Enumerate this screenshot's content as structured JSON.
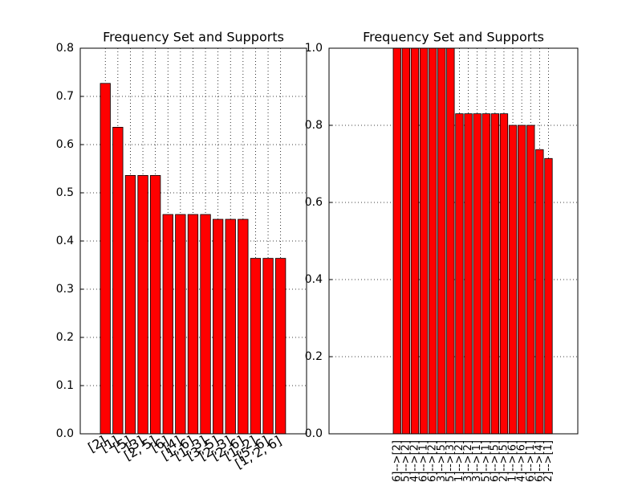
{
  "chart_data": [
    {
      "type": "bar",
      "title": "Frequency Set and Supports",
      "color": "#ff0000",
      "categories": [
        "[2]",
        "[1]",
        "[5]",
        "[3]",
        "[2, 5]",
        "[6]",
        "[4]",
        "[1, 6]",
        "[1, 3]",
        "[3, 5]",
        "[2, 3]",
        "[2, 6]",
        "[1, 2]",
        "[5, 6]",
        "[1, 2, 6]"
      ],
      "values": [
        0.727,
        0.636,
        0.536,
        0.536,
        0.536,
        0.455,
        0.455,
        0.455,
        0.455,
        0.445,
        0.445,
        0.445,
        0.364,
        0.364,
        0.364
      ],
      "ylim": [
        0,
        0.8
      ],
      "yticks": [
        {
          "value": 0,
          "label": "0.0"
        },
        0.1,
        0.2,
        0.3,
        0.4,
        0.5,
        0.6,
        0.7,
        0.8
      ],
      "grid": true
    },
    {
      "type": "bar",
      "title": "Frequency Set and Supports",
      "color": "#ff0000",
      "categories": [
        "[6]-->[2]",
        "[5]-->[2]",
        "[4]-->[2]",
        "[2, 6]-->[1]",
        "[1, 6]-->[2]",
        "[3]-->[5]",
        "[5]-->[3]",
        "[1]-->[2]",
        "[3]-->[2]",
        "[3]-->[1]",
        "[5]-->[1]",
        "[6]-->[5]",
        "[2]-->[5]",
        "[1]-->[6]",
        "[4]-->[6]",
        "[6]-->[1]",
        "[6]-->[4]",
        "[2]-->[1]"
      ],
      "values": [
        1.0,
        1.0,
        1.0,
        1.0,
        1.0,
        1.0,
        1.0,
        0.83,
        0.83,
        0.83,
        0.83,
        0.83,
        0.83,
        0.8,
        0.8,
        0.8,
        0.737,
        0.714
      ],
      "ylim": [
        0,
        1.0
      ],
      "yticks": [
        {
          "value": 0,
          "label": "0.0"
        },
        0.2,
        0.4,
        0.6,
        0.8,
        {
          "value": 1.0,
          "label": "1.0"
        }
      ],
      "grid": true
    }
  ]
}
